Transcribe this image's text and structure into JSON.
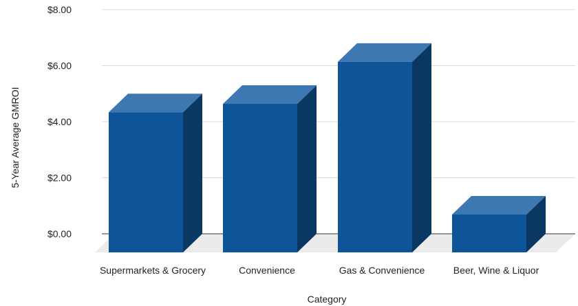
{
  "chart_data": {
    "type": "bar",
    "style": "3d",
    "title": "",
    "xlabel": "Category",
    "ylabel": "5-Year Average GMROI",
    "categories": [
      "Supermarkets & Grocery",
      "Convenience",
      "Gas & Convenience",
      "Beer, Wine & Liquor"
    ],
    "values": [
      5.0,
      5.3,
      6.8,
      1.35
    ],
    "ylim": [
      0,
      8
    ],
    "y_ticks": [
      "$0.00",
      "$2.00",
      "$4.00",
      "$6.00",
      "$8.00"
    ],
    "grid": true,
    "legend": "none",
    "colors": {
      "bar_front": "#0d5499",
      "bar_top": "#3e78b3",
      "bar_side": "#0b3862",
      "floor": "#ebebeb",
      "gridline": "#d9d9d9"
    }
  }
}
